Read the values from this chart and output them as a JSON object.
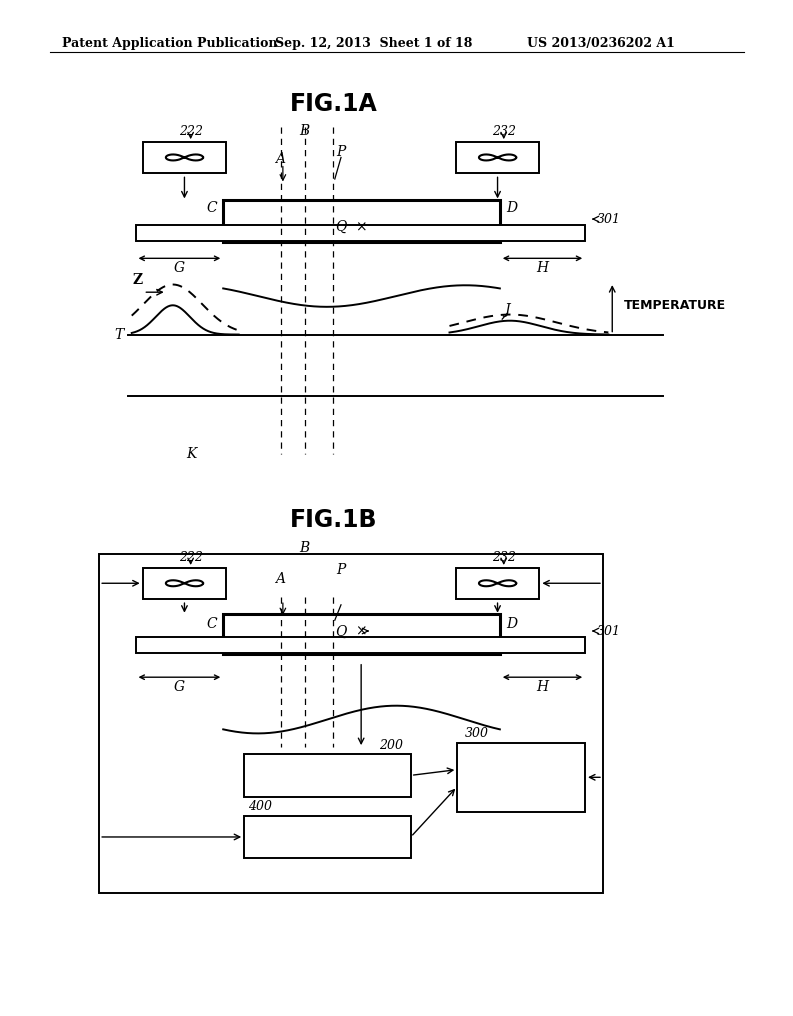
{
  "bg_color": "#ffffff",
  "header_text": "Patent Application Publication",
  "header_date": "Sep. 12, 2013  Sheet 1 of 18",
  "header_patent": "US 2013/0236202 A1",
  "fig1a_title": "FIG.1A",
  "fig1b_title": "FIG.1B",
  "label_222": "222",
  "label_232": "232",
  "label_301": "301",
  "label_200": "200",
  "label_300": "300",
  "label_400": "400",
  "label_temp": "TEMPERATURE"
}
